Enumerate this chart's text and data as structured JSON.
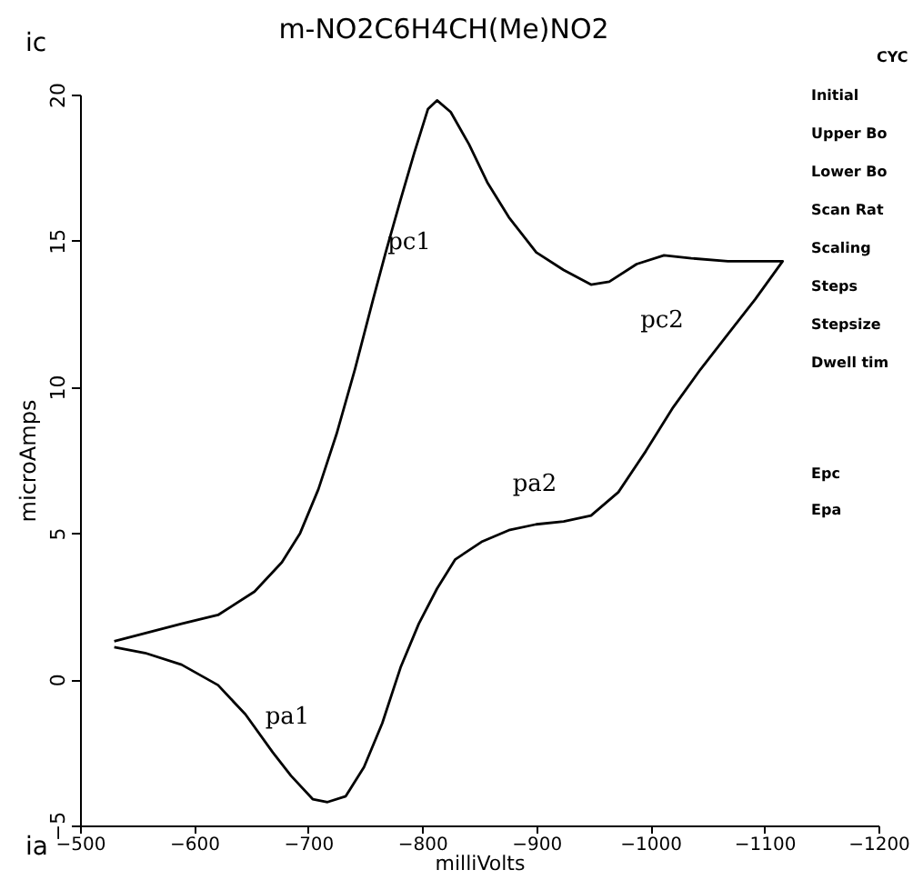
{
  "chart_data": {
    "type": "line",
    "title": "m-NO2C6H4CH(Me)NO2",
    "xlabel": "milliVolts",
    "ylabel": "microAmps",
    "xlim": [
      -500,
      -1200
    ],
    "xticks": [
      -500,
      -600,
      -700,
      -800,
      -900,
      -1000,
      -1100,
      -1200
    ],
    "ylim": [
      -5,
      20
    ],
    "yticks": [
      -5,
      0,
      5,
      10,
      15,
      20
    ],
    "grid": false,
    "marker": "none",
    "line_style": "solid",
    "series": [
      {
        "color": "#000000",
        "x": [
          -530,
          -589,
          -621,
          -653,
          -677,
          -693,
          -709,
          -725,
          -741,
          -757,
          -768,
          -781,
          -793,
          -805,
          -813,
          -825,
          -841,
          -857,
          -876,
          -900,
          -924,
          -948,
          -964,
          -988,
          -1012,
          -1036,
          -1068,
          -1116,
          -1092,
          -1068,
          -1044,
          -1020,
          -996,
          -972,
          -948,
          -924,
          -900,
          -876,
          -852,
          -829,
          -813,
          -797,
          -781,
          -765,
          -749,
          -733,
          -717,
          -704,
          -685,
          -669,
          -645,
          -621,
          -589,
          -557,
          -530
        ],
        "values": [
          1.3,
          1.9,
          2.2,
          3.0,
          4.0,
          5.0,
          6.5,
          8.4,
          10.6,
          13.0,
          14.6,
          16.4,
          18.0,
          19.5,
          19.8,
          19.4,
          18.3,
          17.0,
          15.8,
          14.6,
          14.0,
          13.5,
          13.6,
          14.2,
          14.5,
          14.4,
          14.3,
          14.3,
          13.0,
          11.8,
          10.6,
          9.3,
          7.8,
          6.4,
          5.6,
          5.4,
          5.3,
          5.1,
          4.7,
          4.1,
          3.1,
          1.9,
          0.4,
          -1.5,
          -3.0,
          -4.0,
          -4.2,
          -4.1,
          -3.3,
          -2.5,
          -1.2,
          -0.2,
          0.5,
          0.9,
          1.1
        ]
      }
    ],
    "annotations": [
      "pc1",
      "pc2",
      "pa2",
      "pa1",
      "ic",
      "ia",
      "CYC",
      "Initial",
      "Upper Bo",
      "Lower Bo",
      "Scan Rat",
      "Scaling",
      "Steps",
      "Stepsize",
      "Dwell tim",
      "Epc",
      "Epa"
    ]
  }
}
